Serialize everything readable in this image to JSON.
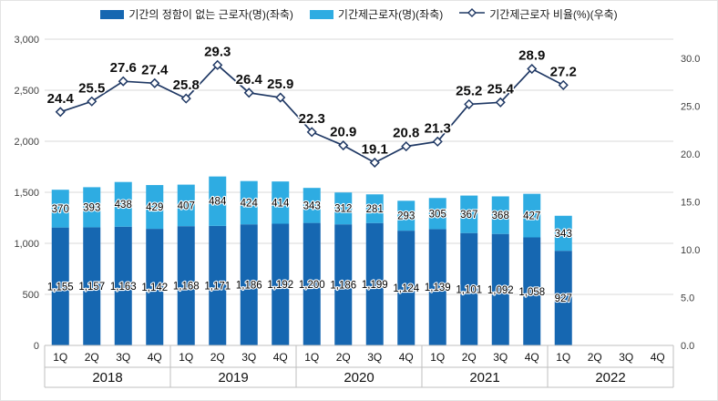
{
  "chart_data": {
    "type": "bar",
    "subtype": "stacked-bar-with-line",
    "categories": [
      "1Q",
      "2Q",
      "3Q",
      "4Q",
      "1Q",
      "2Q",
      "3Q",
      "4Q",
      "1Q",
      "2Q",
      "3Q",
      "4Q",
      "1Q",
      "2Q",
      "3Q",
      "4Q",
      "1Q",
      "2Q",
      "3Q",
      "4Q"
    ],
    "year_groups": [
      {
        "label": "2018",
        "span": 4
      },
      {
        "label": "2019",
        "span": 4
      },
      {
        "label": "2020",
        "span": 4
      },
      {
        "label": "2021",
        "span": 4
      },
      {
        "label": "2022",
        "span": 4
      }
    ],
    "series": [
      {
        "name": "기간의 정함이 없는 근로자(명)(좌축)",
        "type": "bar",
        "axis": "left",
        "color": "#1667B1",
        "values": [
          1155,
          1157,
          1163,
          1142,
          1168,
          1171,
          1186,
          1192,
          1200,
          1186,
          1199,
          1124,
          1139,
          1101,
          1092,
          1058,
          927,
          null,
          null,
          null
        ]
      },
      {
        "name": "기간제근로자(명)(좌축)",
        "type": "bar",
        "axis": "left",
        "color": "#2EACE2",
        "values": [
          370,
          393,
          438,
          429,
          407,
          484,
          424,
          414,
          343,
          312,
          281,
          293,
          305,
          367,
          368,
          427,
          343,
          null,
          null,
          null
        ]
      },
      {
        "name": "기간제근로자 비율(%)(우축)",
        "type": "line",
        "axis": "right",
        "color": "#1F3864",
        "marker": "diamond",
        "values": [
          24.4,
          25.5,
          27.6,
          27.4,
          25.8,
          29.3,
          26.4,
          25.9,
          22.3,
          20.9,
          19.1,
          20.8,
          21.3,
          25.2,
          25.4,
          28.9,
          27.2,
          null,
          null,
          null
        ]
      }
    ],
    "left_axis": {
      "min": 0,
      "max": 3000,
      "step": 500,
      "ticks": [
        "0",
        "500",
        "1,000",
        "1,500",
        "2,000",
        "2,500",
        "3,000"
      ]
    },
    "right_axis": {
      "min": 0,
      "max": 32,
      "tick_step": 5,
      "ticks": [
        "0.0",
        "5.0",
        "10.0",
        "15.0",
        "20.0",
        "25.0",
        "30.0"
      ]
    },
    "grid": "horizontal",
    "legend_position": "top",
    "colors": {
      "gridline": "#DADADA",
      "axis_line": "#BFBFBF",
      "label_text": "#000000"
    }
  }
}
